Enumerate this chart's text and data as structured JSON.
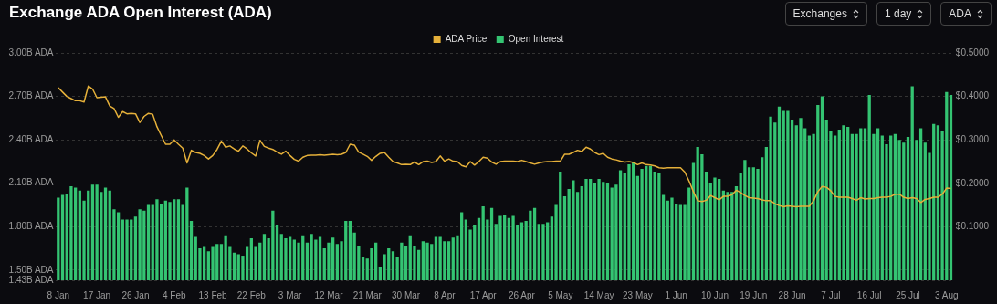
{
  "chart_data": {
    "type": "bar",
    "title": "Exchange ADA Open Interest (ADA)",
    "annotations": [
      "Exchanges",
      "1 day",
      "ADA"
    ],
    "categories": [
      "8 Jan",
      null,
      null,
      null,
      null,
      null,
      null,
      null,
      null,
      "17 Jan",
      null,
      null,
      null,
      null,
      null,
      null,
      null,
      null,
      "26 Jan",
      null,
      null,
      null,
      null,
      null,
      null,
      null,
      null,
      "4 Feb",
      null,
      null,
      null,
      null,
      null,
      null,
      null,
      null,
      "13 Feb",
      null,
      null,
      null,
      null,
      null,
      null,
      null,
      null,
      "22 Feb",
      null,
      null,
      null,
      null,
      null,
      null,
      null,
      null,
      "3 Mar",
      null,
      null,
      null,
      null,
      null,
      null,
      null,
      null,
      "12 Mar",
      null,
      null,
      null,
      null,
      null,
      null,
      null,
      null,
      "21 Mar",
      null,
      null,
      null,
      null,
      null,
      null,
      null,
      null,
      "30 Mar",
      null,
      null,
      null,
      null,
      null,
      null,
      null,
      null,
      "8 Apr",
      null,
      null,
      null,
      null,
      null,
      null,
      null,
      null,
      "17 Apr",
      null,
      null,
      null,
      null,
      null,
      null,
      null,
      null,
      "26 Apr",
      null,
      null,
      null,
      null,
      null,
      null,
      null,
      null,
      "5 May",
      null,
      null,
      null,
      null,
      null,
      null,
      null,
      null,
      "14 May",
      null,
      null,
      null,
      null,
      null,
      null,
      null,
      null,
      "23 May",
      null,
      null,
      null,
      null,
      null,
      null,
      null,
      null,
      "1 Jun",
      null,
      null,
      null,
      null,
      null,
      null,
      null,
      null,
      "10 Jun",
      null,
      null,
      null,
      null,
      null,
      null,
      null,
      null,
      "19 Jun",
      null,
      null,
      null,
      null,
      null,
      null,
      null,
      null,
      "28 Jun",
      null,
      null,
      null,
      null,
      null,
      null,
      null,
      null,
      "7 Jul",
      null,
      null,
      null,
      null,
      null,
      null,
      null,
      null,
      "16 Jul",
      null,
      null,
      null,
      null,
      null,
      null,
      null,
      null,
      "25 Jul",
      null,
      null,
      null,
      null,
      null,
      null,
      null,
      null,
      "3 Aug",
      null
    ],
    "series": [
      {
        "name": "ADA Price",
        "type": "line",
        "axis": "y2",
        "color": "#e5b03a",
        "values": [
          0.42,
          0.41,
          0.4,
          0.395,
          0.39,
          0.39,
          0.387,
          0.424,
          0.417,
          0.397,
          0.398,
          0.399,
          0.378,
          0.372,
          0.352,
          0.365,
          0.36,
          0.361,
          0.36,
          0.34,
          0.354,
          0.361,
          0.359,
          0.33,
          0.31,
          0.29,
          0.29,
          0.3,
          0.29,
          0.281,
          0.247,
          0.276,
          0.271,
          0.269,
          0.264,
          0.256,
          0.264,
          0.278,
          0.297,
          0.283,
          0.286,
          0.279,
          0.274,
          0.286,
          0.279,
          0.27,
          0.263,
          0.299,
          0.285,
          0.281,
          0.278,
          0.272,
          0.267,
          0.274,
          0.264,
          0.255,
          0.251,
          0.26,
          0.264,
          0.265,
          0.265,
          0.266,
          0.265,
          0.266,
          0.267,
          0.266,
          0.267,
          0.271,
          0.29,
          0.288,
          0.272,
          0.267,
          0.262,
          0.253,
          0.262,
          0.269,
          0.271,
          0.26,
          0.25,
          0.247,
          0.243,
          0.244,
          0.243,
          0.249,
          0.243,
          0.25,
          0.251,
          0.248,
          0.25,
          0.263,
          0.251,
          0.256,
          0.251,
          0.25,
          0.241,
          0.238,
          0.25,
          0.242,
          0.25,
          0.26,
          0.258,
          0.249,
          0.244,
          0.25,
          0.251,
          0.251,
          0.251,
          0.25,
          0.253,
          0.25,
          0.247,
          0.244,
          0.247,
          0.249,
          0.25,
          0.25,
          0.251,
          0.251,
          0.267,
          0.267,
          0.271,
          0.276,
          0.273,
          0.283,
          0.279,
          0.271,
          0.266,
          0.269,
          0.26,
          0.256,
          0.254,
          0.251,
          0.249,
          0.25,
          0.248,
          0.243,
          0.247,
          0.243,
          0.242,
          0.24,
          0.236,
          0.235,
          0.236,
          0.236,
          0.236,
          0.236,
          0.226,
          0.205,
          0.181,
          0.16,
          0.158,
          0.161,
          0.172,
          0.167,
          0.162,
          0.17,
          0.17,
          0.174,
          0.184,
          0.179,
          0.172,
          0.167,
          0.166,
          0.165,
          0.162,
          0.16,
          0.16,
          0.153,
          0.149,
          0.146,
          0.148,
          0.147,
          0.146,
          0.147,
          0.147,
          0.147,
          0.16,
          0.181,
          0.193,
          0.191,
          0.183,
          0.17,
          0.168,
          0.168,
          0.168,
          0.165,
          0.161,
          0.167,
          0.164,
          0.165,
          0.165,
          0.167,
          0.168,
          0.168,
          0.17,
          0.175,
          0.175,
          0.168,
          0.165,
          0.167,
          0.165,
          0.156,
          0.163,
          0.165,
          0.168,
          0.168,
          0.175,
          0.189,
          0.188
        ]
      },
      {
        "name": "Open Interest",
        "color": "#34c472",
        "values": [
          2.0,
          2.02,
          2.025,
          2.08,
          2.07,
          2.05,
          1.98,
          2.05,
          2.09,
          2.09,
          2.04,
          2.07,
          2.05,
          1.92,
          1.9,
          1.85,
          1.85,
          1.85,
          1.87,
          1.92,
          1.91,
          1.95,
          1.95,
          1.99,
          1.96,
          1.98,
          1.97,
          1.99,
          1.99,
          1.95,
          2.07,
          1.84,
          1.73,
          1.65,
          1.66,
          1.63,
          1.66,
          1.68,
          1.68,
          1.74,
          1.66,
          1.62,
          1.61,
          1.6,
          1.66,
          1.72,
          1.66,
          1.69,
          1.75,
          1.72,
          1.91,
          1.81,
          1.75,
          1.72,
          1.73,
          1.71,
          1.69,
          1.74,
          1.69,
          1.75,
          1.71,
          1.73,
          1.65,
          1.69,
          1.725,
          1.68,
          1.7,
          1.84,
          1.84,
          1.76,
          1.67,
          1.59,
          1.58,
          1.65,
          1.69,
          1.52,
          1.61,
          1.65,
          1.63,
          1.59,
          1.69,
          1.67,
          1.74,
          1.67,
          1.64,
          1.7,
          1.69,
          1.68,
          1.73,
          1.73,
          1.7,
          1.7,
          1.725,
          1.74,
          1.9,
          1.85,
          1.78,
          1.81,
          1.86,
          1.94,
          1.85,
          1.93,
          1.82,
          1.875,
          1.88,
          1.86,
          1.875,
          1.81,
          1.83,
          1.84,
          1.91,
          1.93,
          1.82,
          1.82,
          1.83,
          1.87,
          1.95,
          2.18,
          2.01,
          2.06,
          2.12,
          2.04,
          2.08,
          2.13,
          2.13,
          2.1,
          2.13,
          2.11,
          2.1,
          2.07,
          2.09,
          2.19,
          2.17,
          2.23,
          2.25,
          2.15,
          2.2,
          2.22,
          2.22,
          2.18,
          2.17,
          2.02,
          1.98,
          2.0,
          1.96,
          1.95,
          1.95,
          2.07,
          2.24,
          2.35,
          2.3,
          2.18,
          2.1,
          2.14,
          2.13,
          2.05,
          2.04,
          2.04,
          2.08,
          2.17,
          2.26,
          2.21,
          2.21,
          2.2,
          2.28,
          2.35,
          2.56,
          2.52,
          2.63,
          2.6,
          2.6,
          2.54,
          2.5,
          2.55,
          2.48,
          2.43,
          2.44,
          2.64,
          2.7,
          2.54,
          2.46,
          2.43,
          2.47,
          2.5,
          2.49,
          2.44,
          2.44,
          2.48,
          2.48,
          2.71,
          2.44,
          2.48,
          2.43,
          2.37,
          2.43,
          2.44,
          2.4,
          2.38,
          2.42,
          2.77,
          2.4,
          2.48,
          2.38,
          2.31,
          2.51,
          2.5,
          2.46,
          2.73,
          2.71
        ]
      }
    ],
    "ylim": [
      1.43,
      3.0
    ],
    "yticks": [
      {
        "value": 1.43,
        "label": "1.43B ADA"
      },
      {
        "value": 1.5,
        "label": "1.50B ADA"
      },
      {
        "value": 1.8,
        "label": "1.80B ADA"
      },
      {
        "value": 2.1,
        "label": "2.10B ADA"
      },
      {
        "value": 2.4,
        "label": "2.40B ADA"
      },
      {
        "value": 2.7,
        "label": "2.70B ADA"
      },
      {
        "value": 3.0,
        "label": "3.00B ADA"
      }
    ],
    "y2lim": [
      -0.023,
      0.5
    ],
    "y2ticks": [
      {
        "value": 0.1,
        "label": "$0.1000"
      },
      {
        "value": 0.2,
        "label": "$0.2000"
      },
      {
        "value": 0.3,
        "label": "$0.3000"
      },
      {
        "value": 0.4,
        "label": "$0.4000"
      },
      {
        "value": 0.5,
        "label": "$0.5000"
      }
    ],
    "grid": "y",
    "legend": "top",
    "marker": "none"
  }
}
